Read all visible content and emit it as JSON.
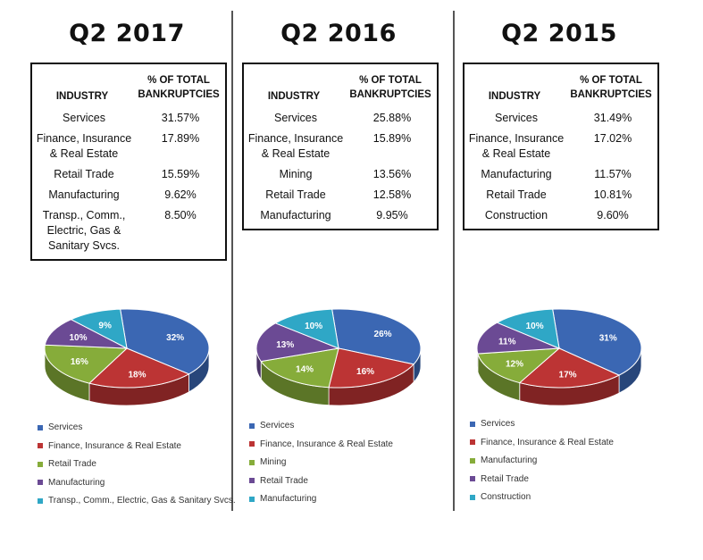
{
  "colors": [
    "#3b67b3",
    "#bc3434",
    "#86ac3a",
    "#6b4a94",
    "#2fa7c6"
  ],
  "chart_data": [
    {
      "type": "pie",
      "title": "Q2 2017",
      "table_headers": {
        "industry": "INDUSTRY",
        "pct_line1": "% OF TOTAL",
        "pct_line2": "BANKRUPTCIES"
      },
      "rows": [
        {
          "industry": "Services",
          "pct": "31.57%"
        },
        {
          "industry": "Finance, Insurance & Real Estate",
          "pct": "17.89%"
        },
        {
          "industry": "Retail Trade",
          "pct": "15.59%"
        },
        {
          "industry": "Manufacturing",
          "pct": "9.62%"
        },
        {
          "industry": "Transp., Comm., Electric, Gas & Sanitary Svcs.",
          "pct": "8.50%"
        }
      ],
      "categories": [
        "Services",
        "Finance, Insurance & Real Estate",
        "Retail Trade",
        "Manufacturing",
        "Transp., Comm., Electric, Gas & Sanitary Svcs."
      ],
      "values": [
        32,
        18,
        16,
        10,
        9
      ],
      "labels": [
        "32%",
        "18%",
        "16%",
        "10%",
        "9%"
      ]
    },
    {
      "type": "pie",
      "title": "Q2 2016",
      "table_headers": {
        "industry": "INDUSTRY",
        "pct_line1": "% OF TOTAL",
        "pct_line2": "BANKRUPTCIES"
      },
      "rows": [
        {
          "industry": "Services",
          "pct": "25.88%"
        },
        {
          "industry": "Finance, Insurance & Real Estate",
          "pct": "15.89%"
        },
        {
          "industry": "Mining",
          "pct": "13.56%"
        },
        {
          "industry": "Retail Trade",
          "pct": "12.58%"
        },
        {
          "industry": "Manufacturing",
          "pct": "9.95%"
        }
      ],
      "categories": [
        "Services",
        "Finance, Insurance & Real Estate",
        "Mining",
        "Retail Trade",
        "Manufacturing"
      ],
      "values": [
        26,
        16,
        14,
        13,
        10
      ],
      "labels": [
        "26%",
        "16%",
        "14%",
        "13%",
        "10%"
      ]
    },
    {
      "type": "pie",
      "title": "Q2 2015",
      "table_headers": {
        "industry": "INDUSTRY",
        "pct_line1": "% OF TOTAL",
        "pct_line2": "BANKRUPTCIES"
      },
      "rows": [
        {
          "industry": "Services",
          "pct": "31.49%"
        },
        {
          "industry": "Finance, Insurance & Real Estate",
          "pct": "17.02%"
        },
        {
          "industry": "Manufacturing",
          "pct": "11.57%"
        },
        {
          "industry": "Retail Trade",
          "pct": "10.81%"
        },
        {
          "industry": "Construction",
          "pct": "9.60%"
        }
      ],
      "categories": [
        "Services",
        "Finance, Insurance & Real Estate",
        "Manufacturing",
        "Retail Trade",
        "Construction"
      ],
      "values": [
        31,
        17,
        12,
        11,
        10
      ],
      "labels": [
        "31%",
        "17%",
        "12%",
        "11%",
        "10%"
      ]
    }
  ]
}
